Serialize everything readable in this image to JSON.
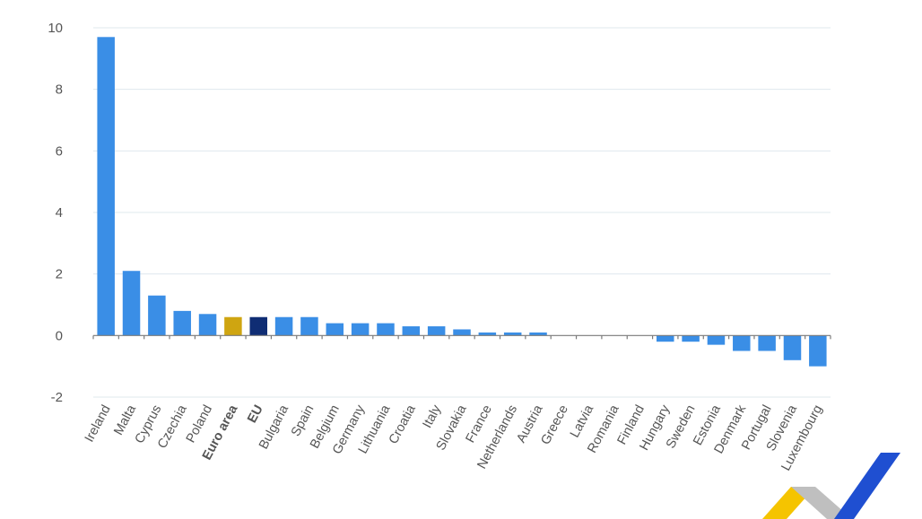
{
  "chart_data": {
    "type": "bar",
    "title": "",
    "xlabel": "",
    "ylabel": "",
    "ylim": [
      -2,
      10
    ],
    "yticks": [
      -2,
      0,
      2,
      4,
      6,
      8,
      10
    ],
    "grid": true,
    "categories": [
      "Ireland",
      "Malta",
      "Cyprus",
      "Czechia",
      "Poland",
      "Euro area",
      "EU",
      "Bulgaria",
      "Spain",
      "Belgium",
      "Germany",
      "Lithuania",
      "Croatia",
      "Italy",
      "Slovakia",
      "France",
      "Netherlands",
      "Austria",
      "Greece",
      "Latvia",
      "Romania",
      "Finland",
      "Hungary",
      "Sweden",
      "Estonia",
      "Denmark",
      "Portugal",
      "Slovenia",
      "Luxembourg"
    ],
    "values": [
      9.7,
      2.1,
      1.3,
      0.8,
      0.7,
      0.6,
      0.6,
      0.6,
      0.6,
      0.4,
      0.4,
      0.4,
      0.3,
      0.3,
      0.2,
      0.1,
      0.1,
      0.1,
      0.0,
      0.0,
      0.0,
      0.0,
      -0.2,
      -0.2,
      -0.3,
      -0.5,
      -0.5,
      -0.8,
      -1.0
    ],
    "bold_categories": [
      "Euro area",
      "EU"
    ],
    "colors": {
      "default": "#3a8ee6",
      "Euro area": "#cfa511",
      "EU": "#0f2d74"
    }
  },
  "logo": {
    "name": "stripe-logo",
    "colors": [
      "#f5c400",
      "#bfbfbf",
      "#1f4fd1"
    ]
  }
}
